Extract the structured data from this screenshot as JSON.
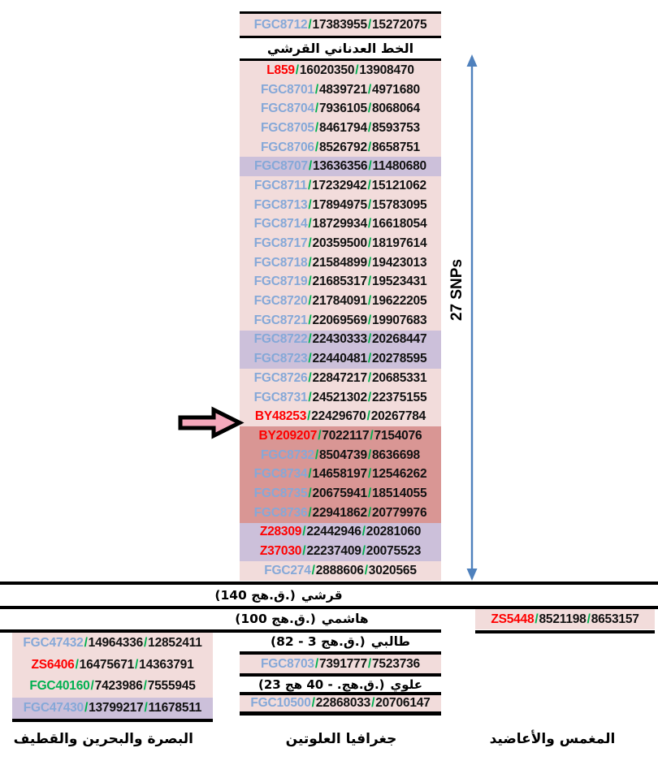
{
  "colors": {
    "row_pink": "#F2DCDB",
    "row_purple": "#CCC0DA",
    "row_darkred": "#D99694",
    "name_blue": "#85A8D8",
    "name_red": "#FE0000",
    "name_green": "#00B050",
    "slash_green": "#00B050",
    "span_arrow_blue": "#4F81BD",
    "pointer_arrow_pink": "#F5A8BC"
  },
  "top_rows": [
    {
      "name": "FGC8712",
      "pos1": "17383955",
      "pos2": "15272075",
      "nc": "blue",
      "bg": "pink"
    }
  ],
  "headers": {
    "adnani": "الخط العدناني القرشي",
    "qurashi": {
      "title": "قرشي",
      "dates": "(140 ق.هج.)"
    },
    "hashimi": {
      "title": "هاشمي",
      "dates": "(100 ق.هج.)"
    },
    "talibi": {
      "title": "طالبي",
      "dates": "(82 - 3 ق.هج.)"
    },
    "alawi": {
      "title": "علوي",
      "dates": "(23 ق.هج. - 40 هج.)"
    }
  },
  "arrow": {
    "label": "27 SNPs"
  },
  "main_rows": [
    {
      "name": "L859",
      "pos1": "16020350",
      "pos2": "13908470",
      "nc": "red",
      "bg": "pink"
    },
    {
      "name": "FGC8701",
      "pos1": "4839721",
      "pos2": "4971680",
      "nc": "blue",
      "bg": "pink"
    },
    {
      "name": "FGC8704",
      "pos1": "7936105",
      "pos2": "8068064",
      "nc": "blue",
      "bg": "pink"
    },
    {
      "name": "FGC8705",
      "pos1": "8461794",
      "pos2": "8593753",
      "nc": "blue",
      "bg": "pink"
    },
    {
      "name": "FGC8706",
      "pos1": "8526792",
      "pos2": "8658751",
      "nc": "blue",
      "bg": "pink"
    },
    {
      "name": "FGC8707",
      "pos1": "13636356",
      "pos2": "11480680",
      "nc": "blue",
      "bg": "purple"
    },
    {
      "name": "FGC8711",
      "pos1": "17232942",
      "pos2": "15121062",
      "nc": "blue",
      "bg": "pink"
    },
    {
      "name": "FGC8713",
      "pos1": "17894975",
      "pos2": "15783095",
      "nc": "blue",
      "bg": "pink"
    },
    {
      "name": "FGC8714",
      "pos1": "18729934",
      "pos2": "16618054",
      "nc": "blue",
      "bg": "pink"
    },
    {
      "name": "FGC8717",
      "pos1": "20359500",
      "pos2": "18197614",
      "nc": "blue",
      "bg": "pink"
    },
    {
      "name": "FGC8718",
      "pos1": "21584899",
      "pos2": "19423013",
      "nc": "blue",
      "bg": "pink"
    },
    {
      "name": "FGC8719",
      "pos1": "21685317",
      "pos2": "19523431",
      "nc": "blue",
      "bg": "pink"
    },
    {
      "name": "FGC8720",
      "pos1": "21784091",
      "pos2": "19622205",
      "nc": "blue",
      "bg": "pink"
    },
    {
      "name": "FGC8721",
      "pos1": "22069569",
      "pos2": "19907683",
      "nc": "blue",
      "bg": "pink"
    },
    {
      "name": "FGC8722",
      "pos1": "22430333",
      "pos2": "20268447",
      "nc": "blue",
      "bg": "purple"
    },
    {
      "name": "FGC8723",
      "pos1": "22440481",
      "pos2": "20278595",
      "nc": "blue",
      "bg": "purple"
    },
    {
      "name": "FGC8726",
      "pos1": "22847217",
      "pos2": "20685331",
      "nc": "blue",
      "bg": "pink"
    },
    {
      "name": "FGC8731",
      "pos1": "24521302",
      "pos2": "22375155",
      "nc": "blue",
      "bg": "pink"
    },
    {
      "name": "BY48253",
      "pos1": "22429670",
      "pos2": "20267784",
      "nc": "red",
      "bg": "pink"
    },
    {
      "name": "BY209207",
      "pos1": "7022117",
      "pos2": "7154076",
      "nc": "red",
      "bg": "darkred"
    },
    {
      "name": "FGC8732",
      "pos1": "8504739",
      "pos2": "8636698",
      "nc": "blue",
      "bg": "darkred"
    },
    {
      "name": "FGC8734",
      "pos1": "14658197",
      "pos2": "12546262",
      "nc": "blue",
      "bg": "darkred"
    },
    {
      "name": "FGC8735",
      "pos1": "20675941",
      "pos2": "18514055",
      "nc": "blue",
      "bg": "darkred"
    },
    {
      "name": "FGC8736",
      "pos1": "22941862",
      "pos2": "20779976",
      "nc": "blue",
      "bg": "darkred"
    },
    {
      "name": "Z28309",
      "pos1": "22442946",
      "pos2": "20281060",
      "nc": "red",
      "bg": "purple"
    },
    {
      "name": "Z37030",
      "pos1": "22237409",
      "pos2": "20075523",
      "nc": "red",
      "bg": "purple"
    },
    {
      "name": "FGC274",
      "pos1": "2888606",
      "pos2": "3020565",
      "nc": "blue",
      "bg": "pink"
    }
  ],
  "right_rows": [
    {
      "name": "ZS5448",
      "pos1": "8521198",
      "pos2": "8653157",
      "nc": "red",
      "bg": "pink"
    }
  ],
  "left_rows": [
    {
      "name": "FGC47432",
      "pos1": "14964336",
      "pos2": "12852411",
      "nc": "blue",
      "bg": "pink"
    },
    {
      "name": "ZS6406",
      "pos1": "16475671",
      "pos2": "14363791",
      "nc": "red",
      "bg": "pink"
    },
    {
      "name": "FGC40160",
      "pos1": "7423986",
      "pos2": "7555945",
      "nc": "green",
      "bg": "pink"
    },
    {
      "name": "FGC47430",
      "pos1": "13799217",
      "pos2": "11678511",
      "nc": "blue",
      "bg": "purple"
    }
  ],
  "talibi_rows": [
    {
      "name": "FGC8703",
      "pos1": "7391777",
      "pos2": "7523736",
      "nc": "blue",
      "bg": "pink"
    }
  ],
  "alawi_rows": [
    {
      "name": "FGC10500",
      "pos1": "22868033",
      "pos2": "20706147",
      "nc": "blue",
      "bg": "pink"
    }
  ],
  "bottom_labels": {
    "left": "البصرة والبحرين والقطيف",
    "middle": "جغرافيا العلوتين",
    "right": "المغمس والأعاضيد"
  }
}
